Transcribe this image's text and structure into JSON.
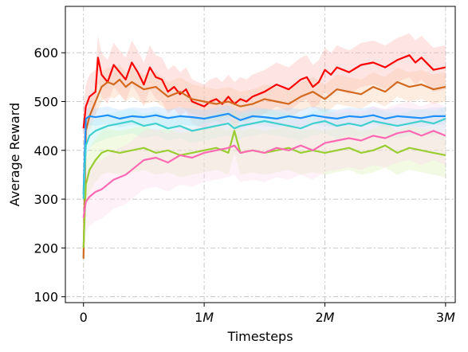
{
  "chart_data": {
    "type": "line",
    "xlabel": "Timesteps",
    "ylabel": "Average Reward",
    "xlim": [
      -0.15,
      3.08
    ],
    "ylim": [
      88,
      695
    ],
    "xticks": [
      0,
      1,
      2,
      3
    ],
    "xtick_labels": [
      {
        "num": "0",
        "unit": ""
      },
      {
        "num": "1",
        "unit": "M"
      },
      {
        "num": "2",
        "unit": "M"
      },
      {
        "num": "3",
        "unit": "M"
      }
    ],
    "yticks": [
      100,
      200,
      300,
      400,
      500,
      600
    ],
    "ytick_labels": [
      "100",
      "200",
      "300",
      "400",
      "500",
      "600"
    ],
    "grid": true,
    "x_unit_note": "x in millions of timesteps",
    "series": [
      {
        "color": "#ff0000",
        "band_color": "#ffb3b3",
        "x": [
          0,
          0.02,
          0.05,
          0.1,
          0.12,
          0.15,
          0.2,
          0.25,
          0.3,
          0.35,
          0.4,
          0.45,
          0.5,
          0.55,
          0.6,
          0.65,
          0.7,
          0.75,
          0.8,
          0.85,
          0.9,
          0.95,
          1.0,
          1.05,
          1.1,
          1.15,
          1.2,
          1.25,
          1.3,
          1.35,
          1.4,
          1.5,
          1.6,
          1.7,
          1.8,
          1.85,
          1.9,
          1.95,
          2.0,
          2.05,
          2.1,
          2.2,
          2.3,
          2.4,
          2.5,
          2.6,
          2.7,
          2.75,
          2.8,
          2.9,
          3.0
        ],
        "y": [
          445,
          490,
          510,
          520,
          590,
          555,
          540,
          575,
          560,
          545,
          580,
          560,
          535,
          570,
          550,
          545,
          520,
          530,
          515,
          525,
          500,
          495,
          490,
          500,
          505,
          495,
          510,
          495,
          505,
          500,
          510,
          520,
          535,
          525,
          545,
          550,
          530,
          540,
          565,
          555,
          570,
          560,
          575,
          580,
          570,
          585,
          595,
          580,
          590,
          565,
          570
        ],
        "band": 45
      },
      {
        "color": "#d2691e",
        "band_color": "#f5cba7",
        "x": [
          0,
          0.02,
          0.05,
          0.1,
          0.15,
          0.2,
          0.25,
          0.3,
          0.35,
          0.4,
          0.5,
          0.6,
          0.7,
          0.8,
          0.9,
          1.0,
          1.1,
          1.2,
          1.3,
          1.4,
          1.5,
          1.6,
          1.7,
          1.8,
          1.9,
          2.0,
          2.1,
          2.2,
          2.3,
          2.4,
          2.5,
          2.6,
          2.7,
          2.8,
          2.9,
          3.0
        ],
        "y": [
          178,
          440,
          470,
          500,
          530,
          540,
          535,
          545,
          530,
          540,
          525,
          530,
          510,
          520,
          505,
          500,
          495,
          500,
          490,
          495,
          505,
          500,
          495,
          510,
          520,
          505,
          525,
          520,
          515,
          530,
          520,
          540,
          530,
          535,
          525,
          530
        ],
        "band": 30
      },
      {
        "color": "#1e90ff",
        "band_color": "#b3d9ff",
        "x": [
          0,
          0.02,
          0.05,
          0.1,
          0.2,
          0.3,
          0.4,
          0.5,
          0.6,
          0.7,
          0.8,
          0.9,
          1.0,
          1.1,
          1.2,
          1.25,
          1.3,
          1.4,
          1.5,
          1.6,
          1.7,
          1.8,
          1.9,
          2.0,
          2.1,
          2.2,
          2.3,
          2.4,
          2.5,
          2.6,
          2.7,
          2.8,
          2.9,
          3.0
        ],
        "y": [
          310,
          465,
          470,
          468,
          472,
          465,
          470,
          468,
          472,
          466,
          470,
          468,
          465,
          470,
          475,
          468,
          462,
          470,
          468,
          465,
          470,
          466,
          472,
          468,
          465,
          470,
          468,
          472,
          465,
          470,
          468,
          466,
          470,
          470
        ],
        "band": 18
      },
      {
        "color": "#40d0d0",
        "band_color": "#b3f0f0",
        "x": [
          0,
          0.02,
          0.05,
          0.1,
          0.15,
          0.2,
          0.3,
          0.4,
          0.5,
          0.6,
          0.7,
          0.8,
          0.9,
          1.0,
          1.1,
          1.2,
          1.25,
          1.3,
          1.4,
          1.5,
          1.6,
          1.7,
          1.8,
          1.9,
          2.0,
          2.1,
          2.2,
          2.3,
          2.4,
          2.5,
          2.6,
          2.7,
          2.8,
          2.9,
          3.0
        ],
        "y": [
          300,
          410,
          430,
          440,
          445,
          450,
          455,
          460,
          450,
          455,
          445,
          450,
          440,
          445,
          450,
          455,
          445,
          450,
          455,
          460,
          455,
          450,
          445,
          455,
          460,
          450,
          455,
          450,
          460,
          455,
          450,
          455,
          460,
          455,
          465
        ],
        "band": 25
      },
      {
        "color": "#9acd32",
        "band_color": "#d9f0b3",
        "x": [
          0,
          0.02,
          0.05,
          0.1,
          0.15,
          0.2,
          0.3,
          0.4,
          0.5,
          0.6,
          0.7,
          0.8,
          0.9,
          1.0,
          1.1,
          1.2,
          1.25,
          1.3,
          1.4,
          1.5,
          1.6,
          1.7,
          1.8,
          1.9,
          2.0,
          2.1,
          2.2,
          2.3,
          2.4,
          2.5,
          2.6,
          2.7,
          2.8,
          2.9,
          3.0
        ],
        "y": [
          200,
          330,
          360,
          380,
          395,
          400,
          395,
          400,
          405,
          395,
          400,
          390,
          395,
          400,
          405,
          395,
          440,
          395,
          400,
          395,
          400,
          405,
          395,
          400,
          395,
          400,
          405,
          395,
          400,
          410,
          395,
          405,
          400,
          395,
          390
        ],
        "band": 45
      },
      {
        "color": "#ff69b4",
        "band_color": "#ffd6eb",
        "x": [
          0,
          0.02,
          0.05,
          0.1,
          0.15,
          0.2,
          0.25,
          0.3,
          0.35,
          0.4,
          0.5,
          0.6,
          0.7,
          0.8,
          0.9,
          1.0,
          1.1,
          1.2,
          1.25,
          1.3,
          1.4,
          1.5,
          1.6,
          1.7,
          1.8,
          1.9,
          2.0,
          2.1,
          2.2,
          2.3,
          2.4,
          2.5,
          2.6,
          2.7,
          2.8,
          2.9,
          3.0
        ],
        "y": [
          262,
          295,
          305,
          315,
          320,
          330,
          340,
          345,
          350,
          360,
          380,
          385,
          375,
          390,
          385,
          395,
          400,
          405,
          410,
          395,
          400,
          395,
          405,
          400,
          410,
          400,
          415,
          420,
          425,
          420,
          430,
          425,
          435,
          440,
          430,
          440,
          430
        ],
        "band": 60
      }
    ]
  }
}
